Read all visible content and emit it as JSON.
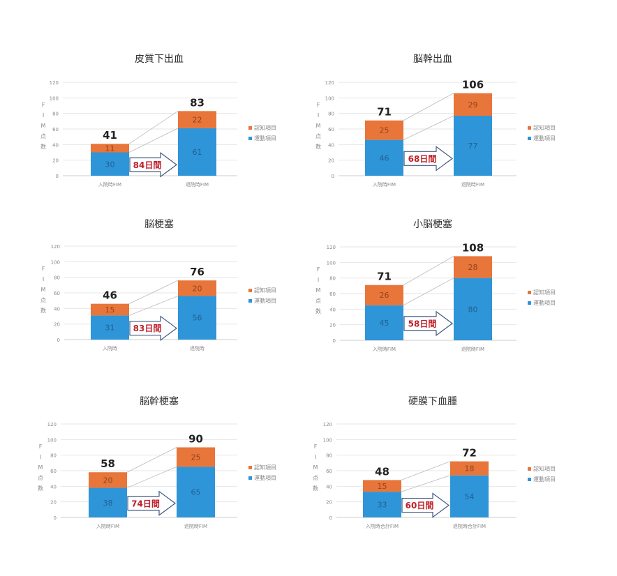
{
  "colors": {
    "motor": "#2e95d8",
    "cognitive": "#e8753a",
    "arrow_fill": "#ffffff",
    "arrow_stroke": "#3f5a80",
    "arrow_text": "#c0202a",
    "axis_text": "#888888",
    "total_text": "#222222",
    "grid": "#e6e6e6"
  },
  "yaxis": {
    "title_chars": [
      "F",
      "I",
      "M",
      "点",
      "数"
    ],
    "ticks": [
      "0",
      "20",
      "40",
      "60",
      "80",
      "100",
      "120"
    ]
  },
  "legend": {
    "cognitive": "認知項目",
    "motor": "運動項目"
  },
  "chart_data": [
    {
      "type": "bar",
      "stacked": true,
      "title": "皮質下出血",
      "categories": [
        "入院時FIM",
        "退院時FIM"
      ],
      "series": [
        {
          "name": "運動項目",
          "values": [
            30,
            61
          ]
        },
        {
          "name": "認知項目",
          "values": [
            11,
            22
          ]
        }
      ],
      "totals": [
        41,
        83
      ],
      "arrow_label": "84日間",
      "ylim": [
        0,
        120
      ],
      "grid": true,
      "legend_position": "right"
    },
    {
      "type": "bar",
      "stacked": true,
      "title": "脳幹出血",
      "categories": [
        "入院時FIM",
        "退院時FIM"
      ],
      "series": [
        {
          "name": "運動項目",
          "values": [
            46,
            77
          ]
        },
        {
          "name": "認知項目",
          "values": [
            25,
            29
          ]
        }
      ],
      "totals": [
        71,
        106
      ],
      "arrow_label": "68日間",
      "ylim": [
        0,
        120
      ],
      "grid": true,
      "legend_position": "right"
    },
    {
      "type": "bar",
      "stacked": true,
      "title": "脳梗塞",
      "categories": [
        "入院時",
        "退院時"
      ],
      "series": [
        {
          "name": "運動項目",
          "values": [
            31,
            56
          ]
        },
        {
          "name": "認知項目",
          "values": [
            15,
            20
          ]
        }
      ],
      "totals": [
        46,
        76
      ],
      "arrow_label": "83日間",
      "ylim": [
        0,
        120
      ],
      "grid": true,
      "legend_position": "right"
    },
    {
      "type": "bar",
      "stacked": true,
      "title": "小脳梗塞",
      "categories": [
        "入院時FIM",
        "退院時FIM"
      ],
      "series": [
        {
          "name": "運動項目",
          "values": [
            45,
            80
          ]
        },
        {
          "name": "認知項目",
          "values": [
            26,
            28
          ]
        }
      ],
      "totals": [
        71,
        108
      ],
      "arrow_label": "58日間",
      "ylim": [
        0,
        120
      ],
      "grid": true,
      "legend_position": "right"
    },
    {
      "type": "bar",
      "stacked": true,
      "title": "脳幹梗塞",
      "categories": [
        "入院時FIM",
        "退院時FIM"
      ],
      "series": [
        {
          "name": "運動項目",
          "values": [
            38,
            65
          ]
        },
        {
          "name": "認知項目",
          "values": [
            20,
            25
          ]
        }
      ],
      "totals": [
        58,
        90
      ],
      "arrow_label": "74日間",
      "ylim": [
        0,
        120
      ],
      "grid": true,
      "legend_position": "right"
    },
    {
      "type": "bar",
      "stacked": true,
      "title": "硬膜下血腫",
      "categories": [
        "入院時合計FIM",
        "退院時合計FIM"
      ],
      "series": [
        {
          "name": "運動項目",
          "values": [
            33,
            54
          ]
        },
        {
          "name": "認知項目",
          "values": [
            15,
            18
          ]
        }
      ],
      "totals": [
        48,
        72
      ],
      "arrow_label": "60日間",
      "ylim": [
        0,
        120
      ],
      "grid": true,
      "legend_position": "right"
    }
  ]
}
